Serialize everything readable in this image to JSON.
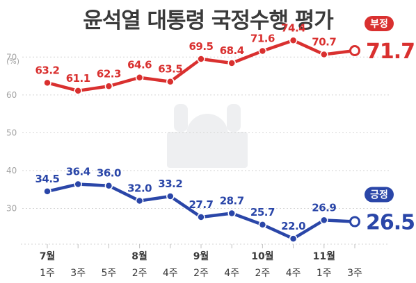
{
  "chart_data": {
    "type": "line",
    "title": "윤석열 대통령 국정수행 평가",
    "y_unit_label": "(%)",
    "ylim": [
      20,
      75
    ],
    "yticks": [
      30,
      40,
      50,
      60,
      70
    ],
    "grid": "horizontal-dashed",
    "x_weeks": [
      "1주",
      "3주",
      "5주",
      "2주",
      "4주",
      "2주",
      "4주",
      "2주",
      "4주",
      "1주",
      "3주"
    ],
    "x_months": [
      {
        "label": "7월",
        "index": 0
      },
      {
        "label": "8월",
        "index": 3
      },
      {
        "label": "9월",
        "index": 5
      },
      {
        "label": "10월",
        "index": 7
      },
      {
        "label": "11월",
        "index": 9
      }
    ],
    "series": [
      {
        "name": "부정",
        "color": "#d9302f",
        "values": [
          63.2,
          61.1,
          62.3,
          64.6,
          63.5,
          69.5,
          68.4,
          71.6,
          74.4,
          70.7,
          71.7
        ]
      },
      {
        "name": "긍정",
        "color": "#2a46a8",
        "values": [
          34.5,
          36.4,
          36.0,
          32.0,
          33.2,
          27.7,
          28.7,
          25.7,
          22.0,
          26.9,
          26.5
        ]
      }
    ]
  }
}
